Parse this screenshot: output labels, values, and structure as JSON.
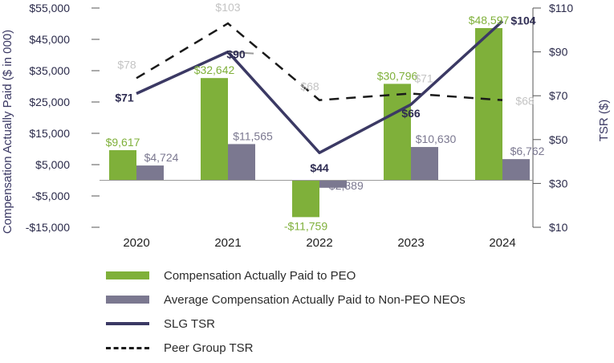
{
  "chart_data": {
    "type": "bar+line",
    "categories": [
      "2020",
      "2021",
      "2022",
      "2023",
      "2024"
    ],
    "series": [
      {
        "name": "Compensation Actually Paid to PEO",
        "kind": "bar",
        "axis": "left",
        "color": "#7fb03a",
        "values": [
          9617,
          32642,
          -11759,
          30796,
          48597
        ],
        "labels": [
          "$9,617",
          "$32,642",
          "-$11,759",
          "$30,796",
          "$48,597"
        ]
      },
      {
        "name": "Average Compensation Actually Paid to Non-PEO NEOs",
        "kind": "bar",
        "axis": "left",
        "color": "#7b7890",
        "values": [
          4724,
          11565,
          -2389,
          10630,
          6762
        ],
        "labels": [
          "$4,724",
          "$11,565",
          "-$2,389",
          "$10,630",
          "$6,762"
        ]
      },
      {
        "name": "SLG TSR",
        "kind": "line",
        "axis": "right",
        "color": "#3b3964",
        "values": [
          71,
          90,
          44,
          66,
          104
        ],
        "labels": [
          "$71",
          "$90",
          "$44",
          "$66",
          "$104"
        ]
      },
      {
        "name": "Peer Group TSR",
        "kind": "dashed-line",
        "axis": "right",
        "color": "#1a1a1a",
        "values": [
          78,
          103,
          68,
          71,
          68
        ],
        "labels": [
          "$78",
          "$103",
          "$68",
          "$71",
          "$68"
        ]
      }
    ],
    "left_axis": {
      "title": "Compensation Actually Paid ($ in 000)",
      "ylim": [
        -15000,
        55000
      ],
      "ticks": [
        -15000,
        -5000,
        5000,
        15000,
        25000,
        35000,
        45000,
        55000
      ],
      "tick_labels": [
        "-$15,000",
        "-$5,000",
        "$5,000",
        "$15,000",
        "$25,000",
        "$35,000",
        "$45,000",
        "$55,000"
      ]
    },
    "right_axis": {
      "title": "TSR ($)",
      "ylim": [
        10,
        110
      ],
      "ticks": [
        10,
        30,
        50,
        70,
        90,
        110
      ],
      "tick_labels": [
        "$10",
        "$30",
        "$50",
        "$70",
        "$90",
        "$110"
      ]
    },
    "legend_position": "bottom"
  },
  "legend": {
    "items": [
      {
        "label": "Compensation Actually Paid to PEO"
      },
      {
        "label": "Average Compensation Actually Paid to Non-PEO NEOs"
      },
      {
        "label": "SLG TSR"
      },
      {
        "label": "Peer Group TSR"
      }
    ]
  },
  "colors": {
    "peo": "#7fb03a",
    "neo": "#7b7890",
    "slg": "#3b3964",
    "peer": "#1a1a1a",
    "peer_label": "#c4c4c4"
  }
}
